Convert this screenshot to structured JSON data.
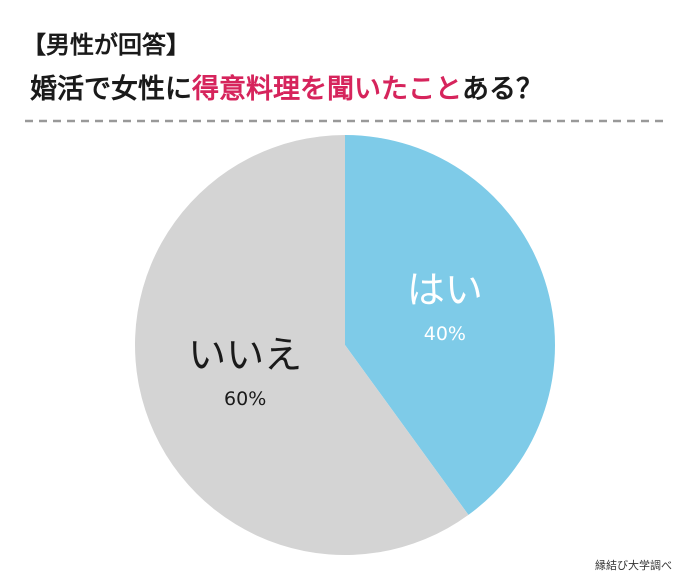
{
  "chart_data": {
    "type": "pie",
    "title": "【男性が回答】",
    "subtitle": [
      {
        "text": "婚活で女性に",
        "color": "#1a1a1a"
      },
      {
        "text": "得意料理を聞いたこと",
        "color": "#d6245c"
      },
      {
        "text": "ある？",
        "color": "#1a1a1a"
      }
    ],
    "categories": [
      "はい",
      "いいえ"
    ],
    "values": [
      40,
      60
    ],
    "value_labels": [
      "40%",
      "60%"
    ],
    "colors": [
      "#7ecbe8",
      "#d4d4d4"
    ],
    "label_colors": [
      "#ffffff",
      "#1a1a1a"
    ],
    "source": "縁結び大学調べ"
  }
}
